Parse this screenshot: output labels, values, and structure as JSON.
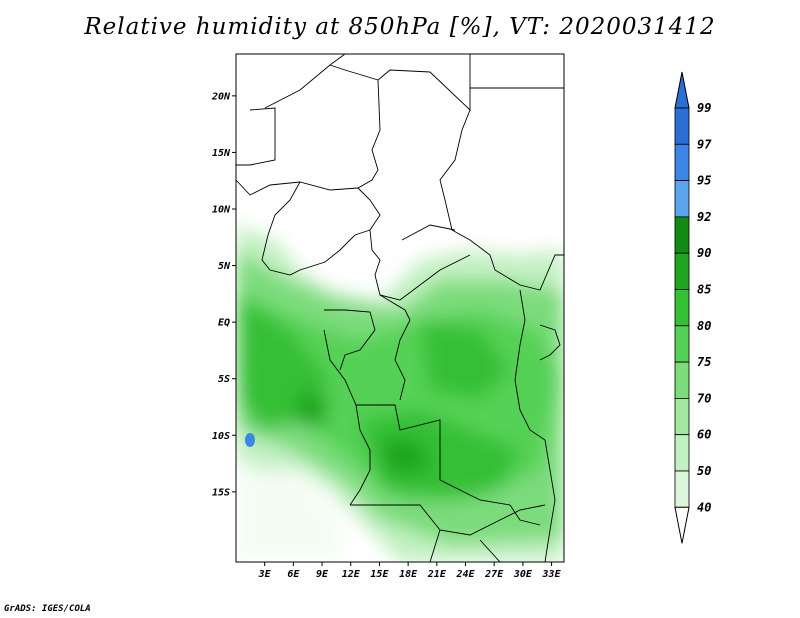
{
  "title": "Relative humidity at 850hPa [%], VT: 2020031412",
  "footer": "GrADS: IGES/COLA",
  "map": {
    "lat_ticks": [
      {
        "value": 20,
        "label": "20N"
      },
      {
        "value": 15,
        "label": "15N"
      },
      {
        "value": 10,
        "label": "10N"
      },
      {
        "value": 5,
        "label": "5N"
      },
      {
        "value": 0,
        "label": "EQ"
      },
      {
        "value": -5,
        "label": "5S"
      },
      {
        "value": -10,
        "label": "10S"
      },
      {
        "value": -15,
        "label": "15S"
      }
    ],
    "lon_ticks": [
      {
        "value": 3,
        "label": "3E"
      },
      {
        "value": 6,
        "label": "6E"
      },
      {
        "value": 9,
        "label": "9E"
      },
      {
        "value": 12,
        "label": "12E"
      },
      {
        "value": 15,
        "label": "15E"
      },
      {
        "value": 18,
        "label": "18E"
      },
      {
        "value": 21,
        "label": "21E"
      },
      {
        "value": 24,
        "label": "24E"
      },
      {
        "value": 27,
        "label": "27E"
      },
      {
        "value": 30,
        "label": "30E"
      },
      {
        "value": 33,
        "label": "33E"
      }
    ]
  },
  "colorbar": {
    "levels": [
      {
        "label": "99",
        "color": "#2a6ed6"
      },
      {
        "label": "97",
        "color": "#3c86e6"
      },
      {
        "label": "95",
        "color": "#5aa5ee"
      },
      {
        "label": "92",
        "color": "#138a13"
      },
      {
        "label": "90",
        "color": "#1fa51f"
      },
      {
        "label": "85",
        "color": "#34bf34"
      },
      {
        "label": "80",
        "color": "#55d155"
      },
      {
        "label": "75",
        "color": "#7cdc7c"
      },
      {
        "label": "70",
        "color": "#a2e7a2"
      },
      {
        "label": "60",
        "color": "#c3f0c3"
      },
      {
        "label": "50",
        "color": "#ddf7dd"
      },
      {
        "label": "40",
        "color": "#f1fcf1"
      }
    ],
    "top_color": "#2a6ed6",
    "bottom_color": "#ffffff"
  }
}
